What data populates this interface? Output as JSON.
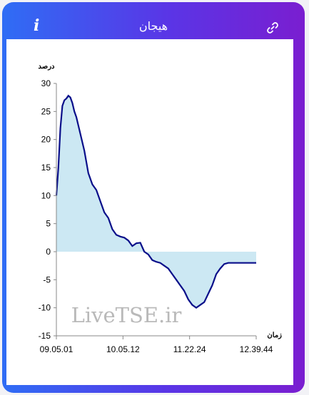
{
  "header": {
    "title": "هیجان"
  },
  "icons": {
    "info": "info-icon",
    "link": "link-icon",
    "info_glyph": "i"
  },
  "chart_data": {
    "type": "area",
    "ylabel": "درصد",
    "xlabel": "زمان",
    "ylim": [
      -15,
      30
    ],
    "yticks": [
      -15,
      -10,
      -5,
      0,
      5,
      10,
      15,
      20,
      25,
      30
    ],
    "xticks": [
      "09.05.01",
      "10.05.12",
      "11.22.24",
      "12.39.44"
    ],
    "watermark": "LiveTSE.ir",
    "fill_color": "#cce8f3",
    "line_color": "#0a0f8a",
    "x": [
      0,
      0.01,
      0.02,
      0.03,
      0.04,
      0.05,
      0.06,
      0.07,
      0.08,
      0.09,
      0.1,
      0.12,
      0.14,
      0.16,
      0.18,
      0.2,
      0.22,
      0.24,
      0.26,
      0.28,
      0.3,
      0.32,
      0.34,
      0.36,
      0.38,
      0.4,
      0.42,
      0.44,
      0.46,
      0.48,
      0.5,
      0.52,
      0.54,
      0.56,
      0.58,
      0.6,
      0.62,
      0.64,
      0.66,
      0.68,
      0.7,
      0.72,
      0.74,
      0.76,
      0.78,
      0.8,
      0.82,
      0.84,
      0.86,
      0.87,
      0.88,
      0.89,
      0.9,
      0.91,
      0.92,
      0.93,
      0.94,
      0.95,
      0.96,
      0.97,
      0.98,
      1.0
    ],
    "values": [
      10,
      15,
      22,
      26,
      27,
      27.3,
      27.8,
      27.5,
      26.5,
      25,
      24,
      21,
      18,
      14,
      12,
      11,
      9,
      7,
      6,
      4,
      3,
      2.7,
      2.5,
      2,
      1,
      1.5,
      1.6,
      0,
      -0.5,
      -1.5,
      -1.8,
      -2,
      -2.5,
      -3,
      -4,
      -5,
      -6,
      -7,
      -8.5,
      -9.5,
      -10,
      -9.5,
      -9,
      -7.5,
      -6,
      -4,
      -3,
      -2.2,
      -2,
      -2,
      -2,
      -2,
      -2,
      -2,
      -2,
      -2,
      -2,
      -2,
      -2,
      -2,
      -2,
      -2
    ]
  }
}
